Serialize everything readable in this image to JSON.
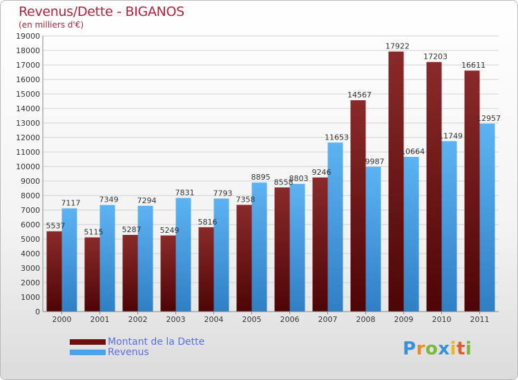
{
  "header": {
    "title": "Revenus/Dette - BIGANOS",
    "subtitle": "(en milliers d'€)"
  },
  "chart_data": {
    "type": "bar",
    "title": "Revenus/Dette - BIGANOS",
    "ylabel": "(en milliers d'€)",
    "categories": [
      "2000",
      "2001",
      "2002",
      "2003",
      "2004",
      "2005",
      "2006",
      "2007",
      "2008",
      "2009",
      "2010",
      "2011"
    ],
    "series": [
      {
        "name": "Montant de la Dette",
        "color": "#7a1515",
        "values": [
          5537,
          5115,
          5287,
          5249,
          5816,
          7358,
          8558,
          9246,
          14567,
          17922,
          17203,
          16611
        ]
      },
      {
        "name": "Revenus",
        "color": "#4aa3ea",
        "values": [
          7117,
          7349,
          7294,
          7831,
          7793,
          8895,
          8803,
          11653,
          9987,
          10664,
          11749,
          12957
        ]
      }
    ],
    "ylim": [
      0,
      19000
    ],
    "yticks": [
      0,
      1000,
      2000,
      3000,
      4000,
      5000,
      6000,
      7000,
      8000,
      9000,
      10000,
      11000,
      12000,
      13000,
      14000,
      15000,
      16000,
      17000,
      18000,
      19000
    ],
    "grid": true,
    "legend_position": "bottom-left"
  },
  "legend": {
    "items": [
      {
        "label": "Montant de la Dette",
        "color": "#6b0f0f"
      },
      {
        "label": "Revenus",
        "color": "#4aa3ea"
      }
    ]
  },
  "logo": {
    "letters": [
      "P",
      "r",
      "o",
      "x",
      "i",
      "t",
      "i"
    ],
    "colors": [
      "#3a8fd6",
      "#f08a1e",
      "#7ab83a",
      "#3a8fd6",
      "#e8b81e",
      "#e05a2a",
      "#7ab83a"
    ]
  }
}
